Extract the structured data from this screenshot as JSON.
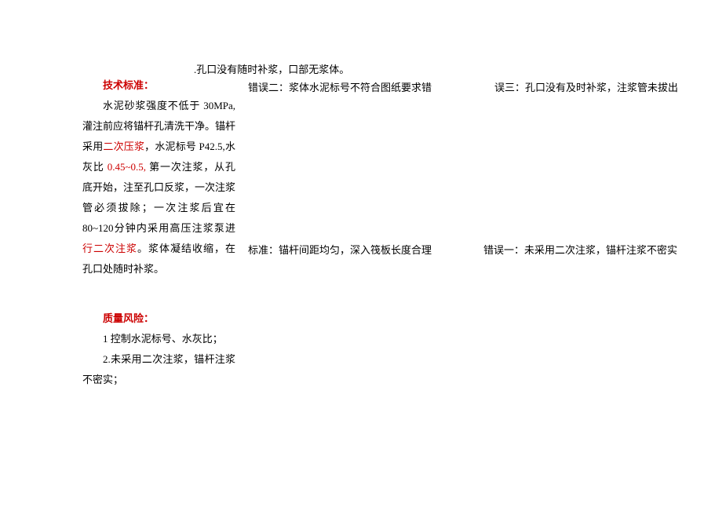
{
  "topNote": ".孔口没有随时补浆，口部无浆体。",
  "heading1": "技术标准：",
  "para_a": "水泥砂浆强度不低于 30MPa,灌注前应将锚杆孔清洗干净。锚杆采",
  "para_b_1": "用",
  "para_b_red": "二次压浆",
  "para_b_2": "，水泥标号 P42.5,水灰比 ",
  "para_b_red2": "0.45~0.5,",
  "para_b_3": " 第一次注浆，从孔底开始，注至孔口反浆，一次注浆管必须拔除；一次注浆后宜在 80~120分钟内采用高压注浆泵进",
  "para_b_red3": "行二次注浆",
  "para_b_4": "。浆体凝结收缩，在孔口处随时补浆。",
  "heading2": "质量风险：",
  "risk1": "1 控制水泥标号、水灰比；",
  "risk2": "2.未采用二次注浆，锚杆注浆不密实；",
  "err2": "错误二：浆体水泥标号不符合图纸要求错",
  "err3": "误三：孔口没有及时补浆，注浆管未拔出",
  "std": "标准：锚杆间距均匀，深入筏板长度合理",
  "err1": "错误一：未采用二次注浆，锚杆注浆不密实"
}
